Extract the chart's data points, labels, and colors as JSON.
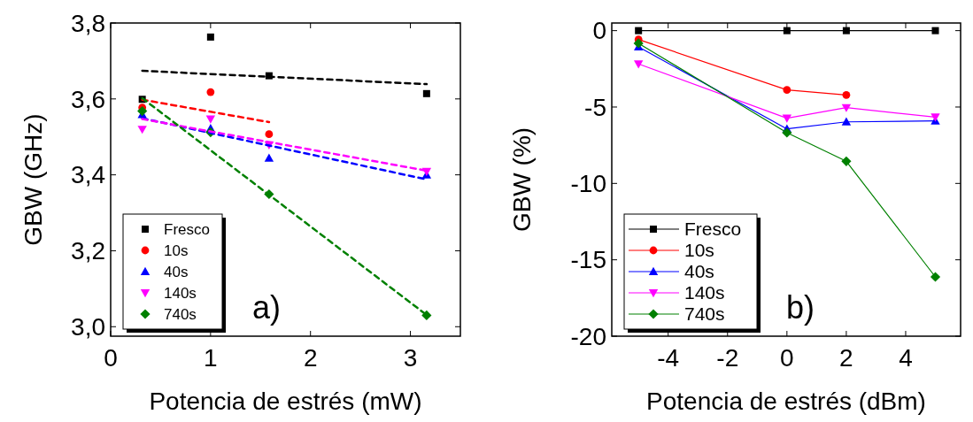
{
  "chart_data": [
    {
      "type": "scatter",
      "xlabel": "Potencia de estrés (mW)",
      "ylabel": "GBW (GHz)",
      "annotations": [
        "a)"
      ],
      "xlim": [
        0,
        3.5
      ],
      "ylim": [
        2.975,
        3.8
      ],
      "xticks": [
        0,
        1,
        2,
        3
      ],
      "yticks": [
        {
          "value": 3.0,
          "label": "3,0"
        },
        {
          "value": 3.2,
          "label": "3,2"
        },
        {
          "value": 3.4,
          "label": "3,4"
        },
        {
          "value": 3.6,
          "label": "3,6"
        },
        {
          "value": 3.8,
          "label": "3,8"
        }
      ],
      "legend": "bottom left",
      "grid": false,
      "series": [
        {
          "name": "Fresco",
          "marker": "square",
          "color": "#000000",
          "x": [
            0.316,
            1,
            1.585,
            3.162
          ],
          "values": [
            3.599,
            3.763,
            3.661,
            3.614
          ]
        },
        {
          "name": "10s",
          "marker": "circle",
          "color": "#ff0000",
          "x": [
            0.316,
            1,
            1.585
          ],
          "values": [
            3.577,
            3.618,
            3.507
          ]
        },
        {
          "name": "40s",
          "marker": "triangle",
          "color": "#0000ff",
          "x": [
            0.316,
            1,
            1.585,
            3.162
          ],
          "values": [
            3.559,
            3.522,
            3.444,
            3.4
          ]
        },
        {
          "name": "140s",
          "marker": "triangle-down",
          "color": "#ff00ff",
          "x": [
            0.316,
            1,
            1.585,
            3.162
          ],
          "values": [
            3.52,
            3.547,
            3.479,
            3.409
          ]
        },
        {
          "name": "740s",
          "marker": "diamond",
          "color": "#008000",
          "x": [
            0.316,
            1,
            1.585,
            3.162
          ],
          "values": [
            3.568,
            3.512,
            3.349,
            3.03
          ]
        },
        {
          "type": "line",
          "line_style": "dashed",
          "marker": "none",
          "color": "#000000",
          "x": [
            0.316,
            3.162
          ],
          "values": [
            3.674,
            3.639
          ]
        },
        {
          "type": "line",
          "line_style": "dashed",
          "marker": "none",
          "color": "#ff0000",
          "x": [
            0.316,
            1.585
          ],
          "values": [
            3.598,
            3.539
          ]
        },
        {
          "type": "line",
          "line_style": "dashed",
          "marker": "none",
          "color": "#0000ff",
          "x": [
            0.316,
            3.162
          ],
          "values": [
            3.549,
            3.388
          ]
        },
        {
          "type": "line",
          "line_style": "dashed",
          "marker": "none",
          "color": "#ff00ff",
          "x": [
            0.316,
            3.162
          ],
          "values": [
            3.547,
            3.411
          ]
        },
        {
          "type": "line",
          "line_style": "dashed",
          "marker": "none",
          "color": "#008000",
          "x": [
            0.316,
            3.162
          ],
          "values": [
            3.602,
            3.031
          ]
        }
      ]
    },
    {
      "type": "line",
      "xlabel": "Potencia de estrés (dBm)",
      "ylabel": "GBW (%)",
      "annotations": [
        "b)"
      ],
      "xlim": [
        -5.9,
        5.85
      ],
      "ylim": [
        -20,
        0.5
      ],
      "xticks": [
        -4,
        -2,
        0,
        2,
        4
      ],
      "yticks": [
        -20,
        -15,
        -10,
        -5,
        0
      ],
      "legend": "bottom left",
      "grid": false,
      "series": [
        {
          "name": "Fresco",
          "marker": "square",
          "line_style": "solid",
          "color": "#000000",
          "x": [
            -5,
            0,
            2,
            5
          ],
          "values": [
            0,
            0,
            0,
            0
          ]
        },
        {
          "name": "10s",
          "marker": "circle",
          "line_style": "solid",
          "color": "#ff0000",
          "x": [
            -5,
            0,
            2
          ],
          "values": [
            -0.58,
            -3.88,
            -4.21
          ]
        },
        {
          "name": "40s",
          "marker": "triangle",
          "line_style": "solid",
          "color": "#0000ff",
          "x": [
            -5,
            0,
            2,
            5
          ],
          "values": [
            -1.06,
            -6.43,
            -5.97,
            -5.91
          ]
        },
        {
          "name": "140s",
          "marker": "triangle-down",
          "line_style": "solid",
          "color": "#ff00ff",
          "x": [
            -5,
            0,
            2,
            5
          ],
          "values": [
            -2.18,
            -5.73,
            -5.04,
            -5.66
          ]
        },
        {
          "name": "740s",
          "marker": "diamond",
          "line_style": "solid",
          "color": "#008000",
          "x": [
            -5,
            0,
            2,
            5
          ],
          "values": [
            -0.83,
            -6.68,
            -8.55,
            -16.12
          ]
        }
      ]
    }
  ]
}
